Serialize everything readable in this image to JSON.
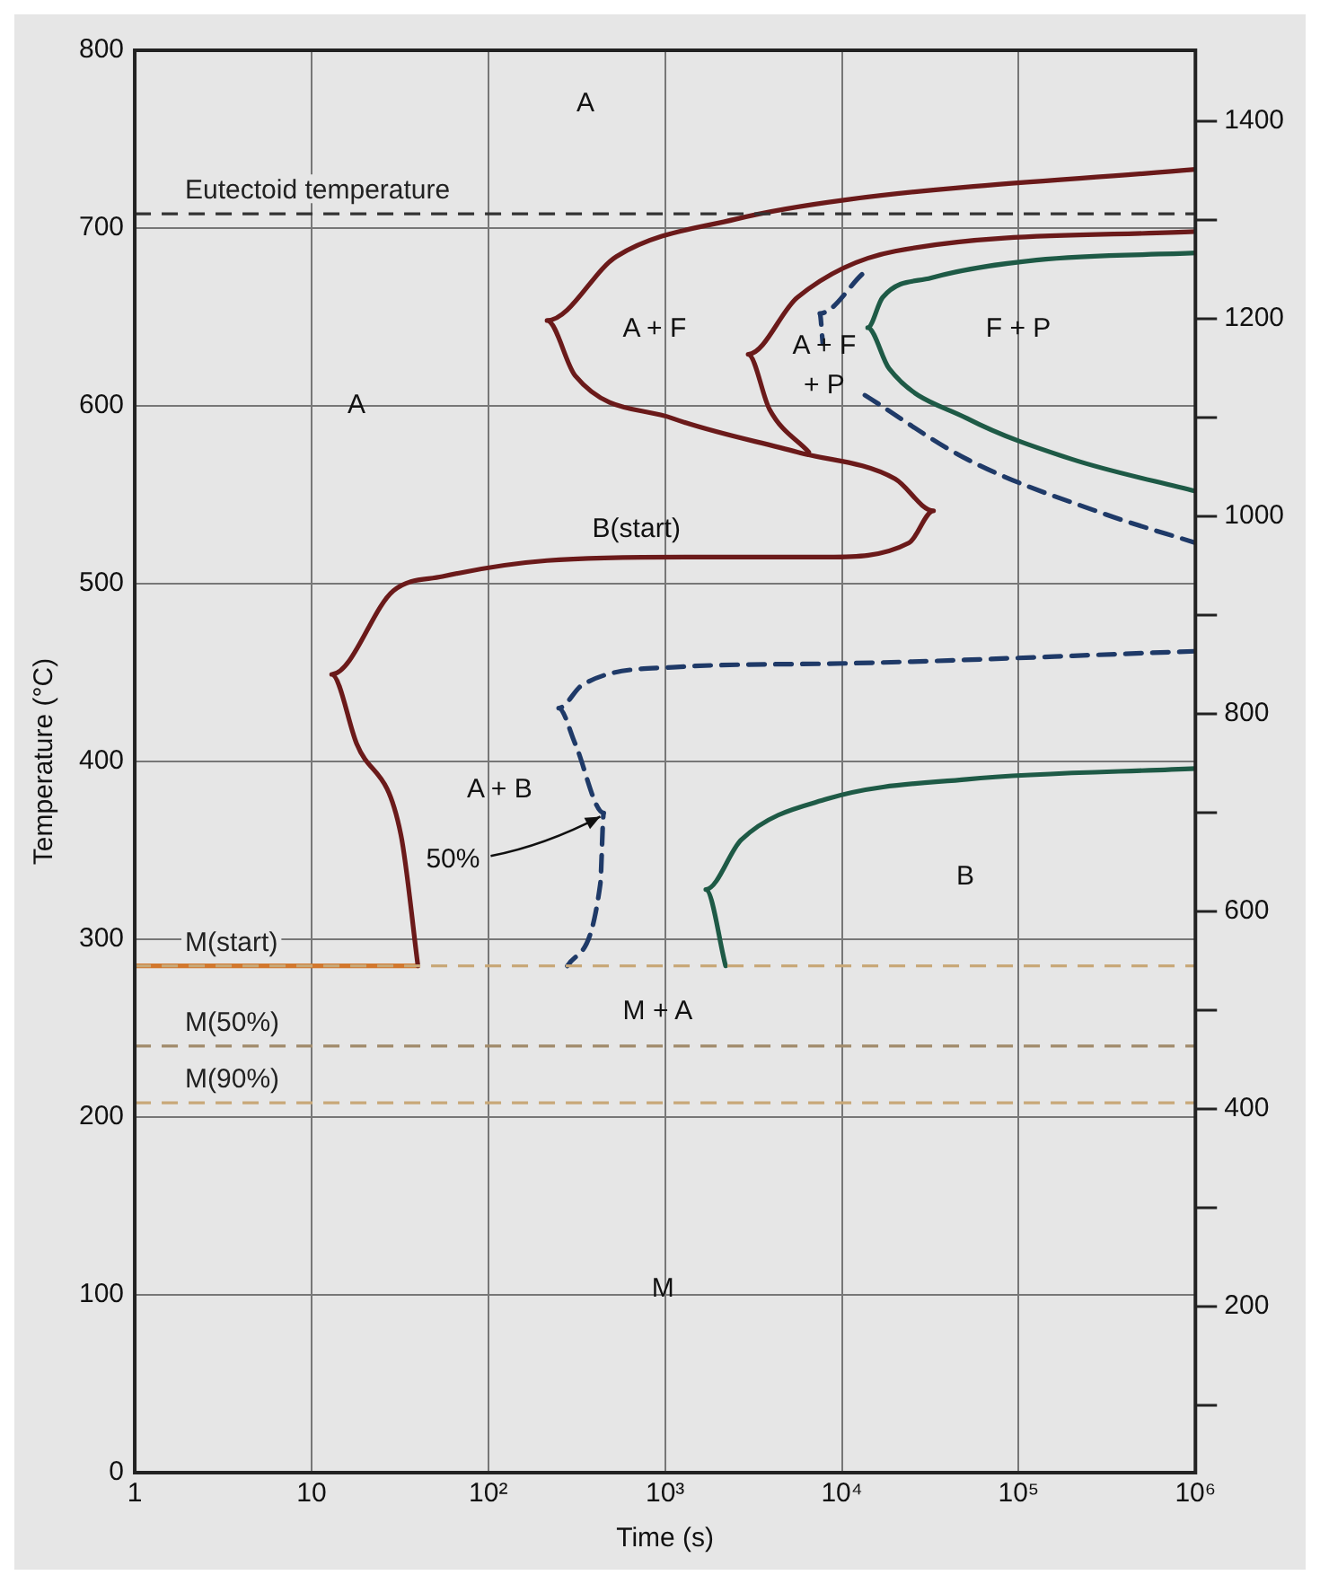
{
  "chart_data": {
    "type": "line",
    "xlabel": "Time (s)",
    "ylabel": "Temperature (°C)",
    "log": "x",
    "grid": true,
    "legend": false,
    "marker": "none",
    "xlim": [
      1,
      1000000
    ],
    "xticks": [
      1,
      10,
      {
        "value": 100,
        "label": "10²"
      },
      {
        "value": 1000,
        "label": "10³"
      },
      {
        "value": 10000,
        "label": "10⁴"
      },
      {
        "value": 100000,
        "label": "10⁵"
      },
      {
        "value": 1000000,
        "label": "10⁶"
      }
    ],
    "ylim": [
      0,
      800
    ],
    "yticks": [
      0,
      100,
      200,
      300,
      400,
      500,
      600,
      700,
      800
    ],
    "y2lim": [
      32,
      1472
    ],
    "y2ticks": [
      {
        "value": 100,
        "label": null
      },
      200,
      {
        "value": 300,
        "label": null
      },
      400,
      {
        "value": 500,
        "label": null
      },
      600,
      {
        "value": 700,
        "label": null
      },
      800,
      {
        "value": 900,
        "label": null
      },
      1000,
      {
        "value": 1100,
        "label": null
      },
      1200,
      {
        "value": 1300,
        "label": null
      },
      1400
    ],
    "series": [
      {
        "type": "line",
        "color": "#6b1a1a",
        "line_style": "solid",
        "x": [
          1000000,
          10700,
          2500,
          530,
          215,
          310,
          1100,
          5600,
          20000,
          33000,
          24000,
          8300,
          1300,
          215,
          55,
          29,
          13,
          18,
          32,
          40
        ],
        "values": [
          733,
          716,
          705,
          684,
          648,
          617,
          593,
          574,
          559,
          541,
          523,
          515,
          515,
          513,
          504,
          496,
          449,
          410,
          359,
          285
        ]
      },
      {
        "type": "line",
        "color": "#6b1a1a",
        "line_style": "solid",
        "x": [
          1000000,
          20000,
          5600,
          2950,
          3900,
          6500
        ],
        "values": [
          698,
          687,
          661,
          629,
          598,
          574
        ]
      },
      {
        "type": "line",
        "color": "#1f3a68",
        "line_style": "dashed",
        "x": [
          13000,
          7500,
          7800,
          10000,
          13500,
          51000,
          310000,
          1000000
        ],
        "values": [
          674,
          652,
          635,
          null,
          606,
          570,
          539,
          523
        ]
      },
      {
        "type": "line",
        "color": "#1e5a46",
        "line_style": "solid",
        "x": [
          1000000,
          126000,
          32000,
          17000,
          14000,
          18500,
          51000,
          200000,
          1000000
        ],
        "values": [
          686,
          682,
          672,
          661,
          644,
          621,
          593,
          570,
          552
        ]
      },
      {
        "type": "line",
        "color": "#1f3a68",
        "line_style": "dashed",
        "x": [
          1000000,
          8300,
          1100,
          340,
          250,
          310,
          450,
          430,
          280
        ],
        "values": [
          462,
          455,
          453,
          443,
          430,
          410,
          371,
          331,
          285
        ]
      },
      {
        "type": "line",
        "color": "#1e5a46",
        "line_style": "solid",
        "x": [
          1000000,
          51000,
          8300,
          2700,
          1700,
          2200
        ],
        "values": [
          396,
          390,
          379,
          356,
          328,
          285
        ]
      },
      {
        "type": "line",
        "color": "#d2782e",
        "line_style": "solid",
        "x": [
          1,
          40
        ],
        "values": [
          285,
          285
        ]
      }
    ],
    "ref_lines": [
      {
        "axis": "y",
        "value": 708,
        "label": "Eutectoid temperature",
        "color": "#333333",
        "line_style": "dashed"
      },
      {
        "axis": "y",
        "value": 285,
        "label": "M(start)",
        "color": "#c8a878",
        "line_style": "dashed"
      },
      {
        "axis": "y",
        "value": 240,
        "label": "M(50%)",
        "color": "#a08a6a",
        "line_style": "dashed"
      },
      {
        "axis": "y",
        "value": 208,
        "label": "M(90%)",
        "color": "#c8a878",
        "line_style": "dashed"
      }
    ],
    "annotations": [
      "A",
      "A",
      "A + F",
      "A + F\n+ P",
      "F + P",
      "B(start)",
      "A + B",
      {
        "text": "50%",
        "x": 430,
        "y": 369
      },
      "B",
      "M + A",
      "M"
    ]
  }
}
